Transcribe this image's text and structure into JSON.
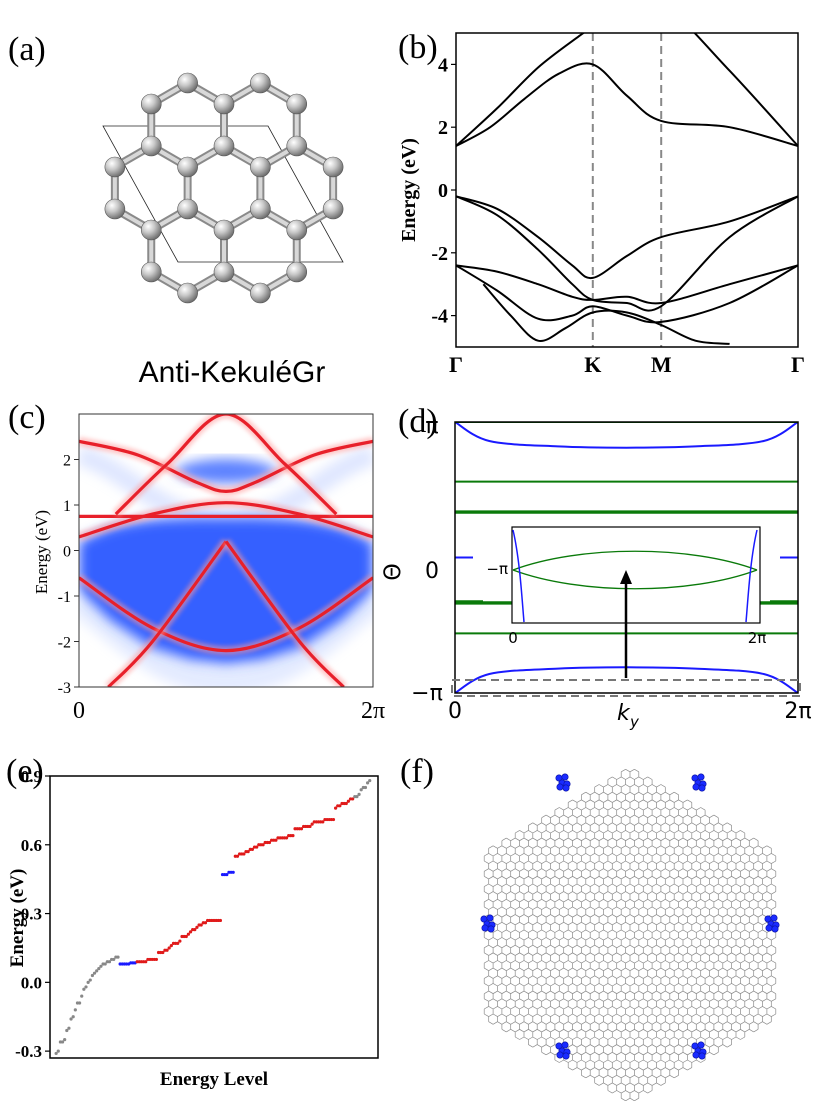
{
  "panel_labels": {
    "a": "(a)",
    "b": "(b)",
    "c": "(c)",
    "d": "(d)",
    "e": "(e)",
    "f": "(f)"
  },
  "panel_a": {
    "caption": "Anti-KekuléGr"
  },
  "chart_data": [
    {
      "panel": "b",
      "type": "line",
      "ylabel": "Energy (eV)",
      "xticks": [
        "Γ",
        "K",
        "M",
        "Γ"
      ],
      "xtick_pos": [
        0,
        1,
        1.5,
        2.5
      ],
      "ylim": [
        -5,
        5
      ],
      "yticks": [
        -4,
        -2,
        0,
        2,
        4
      ],
      "vlines_at": [
        1,
        1.5
      ],
      "series": [
        {
          "x": [
            0,
            0.25,
            0.5,
            0.75,
            1,
            1.25,
            1.5,
            2.0,
            2.5
          ],
          "y": [
            1.4,
            2.0,
            2.9,
            3.7,
            4.0,
            3.0,
            2.2,
            2.0,
            1.4
          ]
        },
        {
          "x": [
            0,
            0.3,
            0.6,
            0.9,
            1,
            1.25,
            1.5,
            2.0,
            2.5
          ],
          "y": [
            1.4,
            2.6,
            3.9,
            4.9,
            5.2,
            6.0,
            6.0,
            3.8,
            1.4
          ]
        },
        {
          "x": [
            0,
            0.3,
            0.6,
            0.85,
            1,
            1.25,
            1.5,
            2.0,
            2.5
          ],
          "y": [
            -0.2,
            -0.6,
            -1.5,
            -2.4,
            -2.8,
            -2.1,
            -1.5,
            -1.0,
            -0.2
          ]
        },
        {
          "x": [
            0,
            0.3,
            0.6,
            0.85,
            1,
            1.25,
            1.5,
            2.0,
            2.5
          ],
          "y": [
            -0.2,
            -0.8,
            -1.9,
            -3.0,
            -3.5,
            -3.6,
            -3.7,
            -1.5,
            -0.2
          ]
        },
        {
          "x": [
            0,
            0.3,
            0.6,
            0.85,
            1,
            1.25,
            1.5,
            2.0,
            2.5
          ],
          "y": [
            -2.4,
            -2.6,
            -3.0,
            -3.4,
            -3.5,
            -3.4,
            -3.6,
            -3.0,
            -2.4
          ]
        },
        {
          "x": [
            0,
            0.3,
            0.6,
            0.85,
            1,
            1.25,
            1.5,
            2.0,
            2.5
          ],
          "y": [
            -2.4,
            -3.2,
            -4.1,
            -4.0,
            -3.7,
            -4.0,
            -4.2,
            -3.6,
            -2.4
          ]
        },
        {
          "x": [
            0.2,
            0.4,
            0.6,
            0.8,
            1,
            1.25,
            1.5,
            1.75,
            2.0
          ],
          "y": [
            -3.0,
            -4.0,
            -4.8,
            -4.4,
            -3.9,
            -3.9,
            -4.3,
            -4.8,
            -4.9
          ]
        }
      ]
    },
    {
      "panel": "c",
      "type": "heatmap",
      "ylabel": "Energy (eV)",
      "xtick_labels": [
        "0",
        "2π"
      ],
      "ylim": [
        -3,
        3
      ],
      "yticks": [
        -3,
        -2,
        -1,
        0,
        1,
        2
      ],
      "edge_states": [
        {
          "k": [
            0,
            0.5,
            1.0,
            1.5,
            2.0
          ],
          "E": [
            -0.6,
            -1.7,
            -2.2,
            -1.7,
            -0.6
          ]
        },
        {
          "k": [
            0,
            0.5,
            1.0,
            1.5,
            2.0
          ],
          "E": [
            0.3,
            0.8,
            1.05,
            0.8,
            0.3
          ]
        },
        {
          "k": [
            0,
            0.5,
            1.0,
            1.5,
            2.0
          ],
          "E": [
            0.75,
            0.75,
            0.75,
            0.75,
            0.75
          ]
        },
        {
          "k": [
            0,
            0.4,
            0.8,
            1.0,
            1.2,
            1.6,
            2.0
          ],
          "E": [
            2.4,
            2.1,
            1.5,
            1.3,
            1.5,
            2.1,
            2.4
          ]
        },
        {
          "k": [
            0.25,
            0.6,
            1.0,
            1.4,
            1.75
          ],
          "E": [
            0.8,
            1.9,
            3.0,
            1.9,
            0.8
          ]
        },
        {
          "k": [
            0.2,
            0.5,
            1.0
          ],
          "E": [
            -3.0,
            -2.0,
            0.2
          ]
        },
        {
          "k": [
            1.0,
            1.5,
            1.8
          ],
          "E": [
            0.2,
            -2.0,
            -3.0
          ]
        }
      ]
    },
    {
      "panel": "d",
      "type": "line",
      "xlabel": "k_y",
      "ylabel": "Θ",
      "xtick_labels": [
        "0",
        "2π"
      ],
      "ytick_labels": [
        "−π",
        "0",
        "π"
      ],
      "series": [
        {
          "name": "",
          "color": "#1a1aff",
          "x": [
            0,
            0.2,
            0.6,
            1.0,
            1.4,
            1.8,
            2.0
          ],
          "y": [
            1.0,
            0.86,
            0.82,
            0.81,
            0.82,
            0.86,
            1.0
          ]
        },
        {
          "name": "",
          "color": "#1a1aff",
          "x": [
            0,
            0.2,
            0.6,
            1.0,
            1.4,
            1.8,
            2.0
          ],
          "y": [
            -1.0,
            -0.86,
            -0.82,
            -0.81,
            -0.82,
            -0.86,
            -1.0
          ]
        },
        {
          "name": "",
          "color": "#0a7a0a",
          "x": [
            0,
            2
          ],
          "y": [
            1.0,
            1.0
          ]
        },
        {
          "name": "",
          "color": "#0a7a0a",
          "x": [
            0,
            2
          ],
          "y": [
            0.56,
            0.56
          ]
        },
        {
          "name": "",
          "color": "#0a7a0a",
          "x": [
            0,
            2
          ],
          "y": [
            0.33,
            0.33
          ]
        },
        {
          "name": "",
          "color": "#0a7a0a",
          "x": [
            0,
            2
          ],
          "y": [
            -0.33,
            -0.33
          ]
        },
        {
          "name": "",
          "color": "#0a7a0a",
          "x": [
            0,
            2
          ],
          "y": [
            -0.56,
            -0.56
          ]
        }
      ],
      "inset": {
        "xtick_labels": [
          "0",
          "2π"
        ],
        "ytick_label": "−π"
      }
    },
    {
      "panel": "e",
      "type": "scatter",
      "xlabel": "Energy Level",
      "ylabel": "Energy (eV)",
      "ylim": [
        -0.33,
        0.9
      ],
      "yticks": [
        -0.3,
        0.0,
        0.3,
        0.6,
        0.9
      ],
      "series": [
        {
          "color": "#888888",
          "levels": [
            1,
            2,
            3,
            4,
            5,
            6,
            7,
            8,
            9,
            10,
            11,
            12,
            13,
            14,
            15,
            16,
            17,
            18,
            19,
            20,
            21,
            22,
            23,
            24,
            25,
            26,
            27,
            28,
            29,
            30
          ],
          "energies": [
            -0.31,
            -0.3,
            -0.26,
            -0.26,
            -0.25,
            -0.21,
            -0.2,
            -0.16,
            -0.15,
            -0.12,
            -0.09,
            -0.09,
            -0.06,
            -0.03,
            -0.02,
            0.0,
            0.01,
            0.03,
            0.04,
            0.05,
            0.06,
            0.07,
            0.08,
            0.08,
            0.09,
            0.09,
            0.1,
            0.1,
            0.11,
            0.11
          ]
        },
        {
          "color": "#1a1aff",
          "levels": [
            31,
            32,
            33,
            34,
            35,
            36,
            37,
            38
          ],
          "energies": [
            0.08,
            0.08,
            0.08,
            0.08,
            0.08,
            0.085,
            0.085,
            0.085
          ]
        },
        {
          "color": "#e01a1a",
          "levels": [
            39,
            40,
            41,
            42,
            43,
            44,
            45,
            46,
            47,
            48,
            49,
            50,
            51,
            52,
            53,
            54,
            55,
            56,
            57,
            58,
            59,
            60,
            61,
            62,
            63,
            64,
            65,
            66,
            67,
            68,
            69,
            70,
            71,
            72,
            73,
            74,
            75,
            76,
            77,
            78
          ],
          "energies": [
            0.09,
            0.09,
            0.09,
            0.09,
            0.09,
            0.1,
            0.1,
            0.1,
            0.1,
            0.1,
            0.13,
            0.13,
            0.13,
            0.14,
            0.14,
            0.15,
            0.16,
            0.17,
            0.17,
            0.17,
            0.18,
            0.2,
            0.2,
            0.2,
            0.21,
            0.22,
            0.23,
            0.23,
            0.24,
            0.25,
            0.25,
            0.26,
            0.26,
            0.27,
            0.27,
            0.27,
            0.27,
            0.27,
            0.27,
            0.27
          ]
        },
        {
          "color": "#1a1aff",
          "levels": [
            79,
            80,
            81,
            82,
            83,
            84
          ],
          "energies": [
            0.47,
            0.47,
            0.47,
            0.48,
            0.48,
            0.48
          ]
        },
        {
          "color": "#e01a1a",
          "levels": [
            85,
            86,
            87,
            88,
            89,
            90,
            91,
            92,
            93,
            94,
            95,
            96,
            97,
            98,
            99,
            100,
            101,
            102,
            103,
            104,
            105,
            106,
            107,
            108,
            109,
            110,
            111,
            112,
            113,
            114,
            115,
            116,
            117,
            118,
            119,
            120,
            121,
            122,
            123,
            124,
            125,
            126,
            127,
            128,
            129,
            130,
            131,
            132,
            133,
            134,
            135,
            136,
            137,
            138,
            139,
            140
          ],
          "energies": [
            0.55,
            0.55,
            0.56,
            0.56,
            0.56,
            0.57,
            0.57,
            0.58,
            0.58,
            0.59,
            0.59,
            0.6,
            0.6,
            0.6,
            0.61,
            0.61,
            0.61,
            0.62,
            0.62,
            0.62,
            0.63,
            0.63,
            0.63,
            0.63,
            0.63,
            0.64,
            0.64,
            0.64,
            0.67,
            0.67,
            0.67,
            0.67,
            0.68,
            0.68,
            0.68,
            0.68,
            0.69,
            0.7,
            0.7,
            0.7,
            0.7,
            0.7,
            0.71,
            0.71,
            0.71,
            0.71,
            0.71,
            0.76,
            0.77,
            0.77,
            0.78,
            0.78,
            0.78,
            0.79,
            0.8,
            0.8
          ]
        },
        {
          "color": "#888888",
          "levels": [
            141,
            142,
            143,
            144,
            145,
            146,
            147,
            148
          ],
          "energies": [
            0.81,
            0.81,
            0.82,
            0.84,
            0.85,
            0.85,
            0.87,
            0.88
          ]
        }
      ]
    }
  ]
}
